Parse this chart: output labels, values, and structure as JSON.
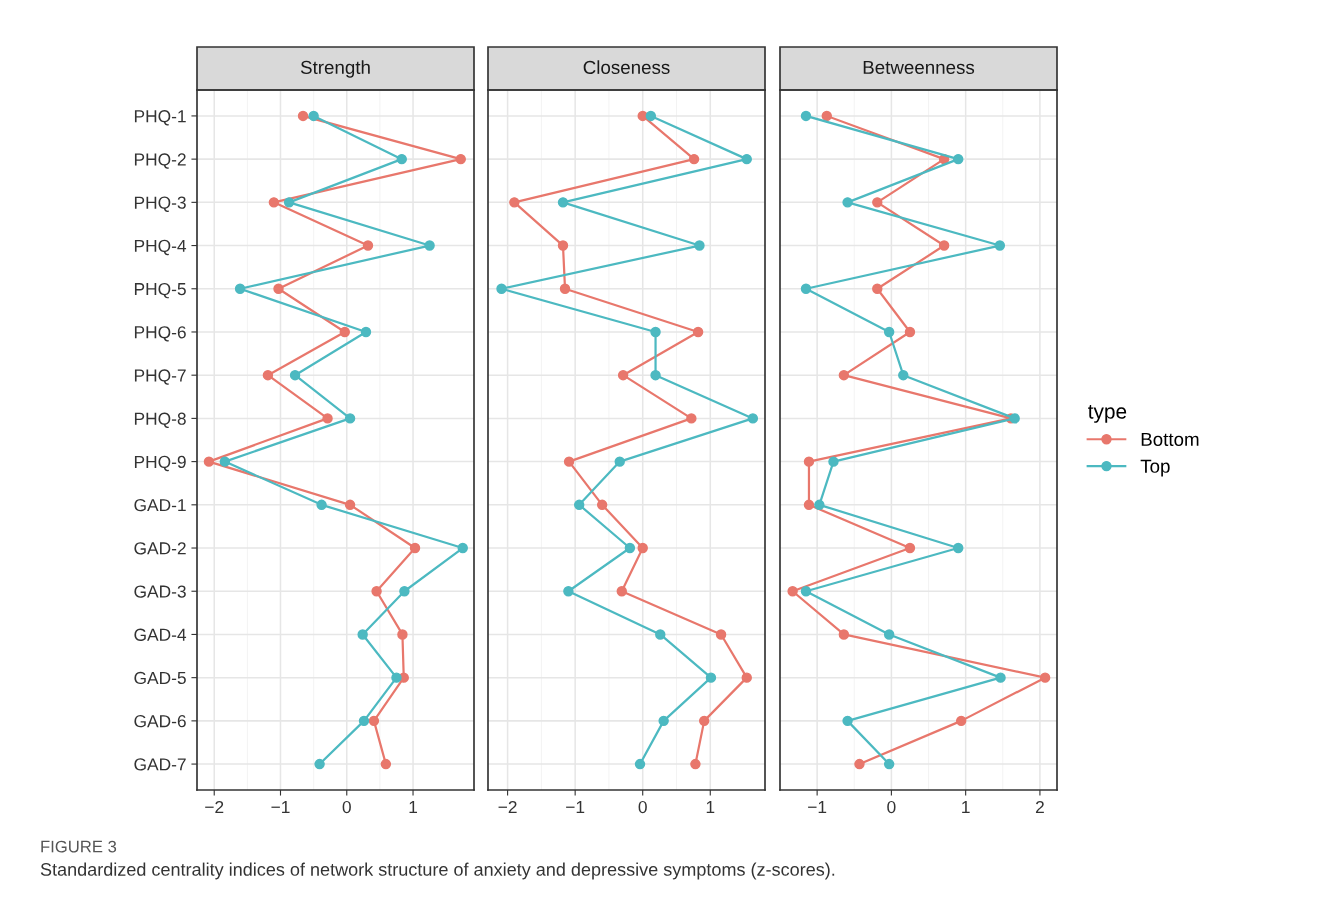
{
  "chart_data": [
    {
      "type": "line",
      "orientation": "horizontal",
      "title": "Strength",
      "categories": [
        "PHQ-1",
        "PHQ-2",
        "PHQ-3",
        "PHQ-4",
        "PHQ-5",
        "PHQ-6",
        "PHQ-7",
        "PHQ-8",
        "PHQ-9",
        "GAD-1",
        "GAD-2",
        "GAD-3",
        "GAD-4",
        "GAD-5",
        "GAD-6",
        "GAD-7"
      ],
      "series": [
        {
          "color": "#e8776c",
          "values": [
            -0.66,
            1.72,
            -1.1,
            0.32,
            -1.03,
            -0.03,
            -1.19,
            -0.29,
            -2.08,
            0.05,
            1.03,
            0.45,
            0.84,
            0.86,
            0.41,
            0.59
          ]
        },
        {
          "color": "#4cb9c1",
          "values": [
            -0.5,
            0.83,
            -0.87,
            1.25,
            -1.61,
            0.29,
            -0.78,
            0.05,
            -1.84,
            -0.38,
            1.75,
            0.87,
            0.24,
            0.75,
            0.26,
            -0.41
          ]
        }
      ],
      "xlim": [
        -2.26,
        1.92
      ],
      "xticks": [
        -2,
        -1,
        0,
        1
      ],
      "grid": true,
      "marker": "circle",
      "line_style": "solid",
      "annotations": [
        "FIGURE 3",
        "Standardized centrality indices of network structure of anxiety and depressive symptoms (z-scores)."
      ]
    },
    {
      "type": "line",
      "orientation": "horizontal",
      "title": "Closeness",
      "series": [
        {
          "color": "#e8776c",
          "values": [
            0.0,
            0.76,
            -1.9,
            -1.18,
            -1.15,
            0.82,
            -0.29,
            0.72,
            -1.09,
            -0.6,
            0.0,
            -0.31,
            1.16,
            1.54,
            0.91,
            0.78
          ]
        },
        {
          "color": "#4cb9c1",
          "values": [
            0.12,
            1.54,
            -1.18,
            0.84,
            -2.09,
            0.19,
            0.19,
            1.63,
            -0.34,
            -0.94,
            -0.19,
            -1.1,
            0.26,
            1.01,
            0.31,
            -0.04
          ]
        }
      ],
      "xlim": [
        -2.29,
        1.81
      ],
      "xticks": [
        -2,
        -1,
        0,
        1
      ],
      "grid": true,
      "marker": "circle",
      "line_style": "solid",
      "tick_labels": "x"
    },
    {
      "type": "line",
      "orientation": "horizontal",
      "title": "Betweenness",
      "series": [
        {
          "name": "Bottom",
          "color": "#e8776c",
          "values": [
            -0.87,
            0.71,
            -0.19,
            0.71,
            -0.19,
            0.25,
            -0.64,
            1.61,
            -1.11,
            -1.11,
            0.25,
            -1.33,
            -0.64,
            2.07,
            0.94,
            -0.43
          ]
        },
        {
          "name": "Top",
          "color": "#4cb9c1",
          "values": [
            -1.15,
            0.9,
            -0.59,
            1.46,
            -1.15,
            -0.03,
            0.16,
            1.66,
            -0.78,
            -0.97,
            0.9,
            -1.15,
            -0.03,
            1.47,
            -0.59,
            -0.03
          ]
        }
      ],
      "xlim": [
        -1.5,
        2.23
      ],
      "xticks": [
        -1,
        0,
        1,
        2
      ],
      "grid": true,
      "marker": "circle",
      "line_style": "solid",
      "legend": "right",
      "legend_title": "type",
      "tick_labels": "x"
    }
  ]
}
